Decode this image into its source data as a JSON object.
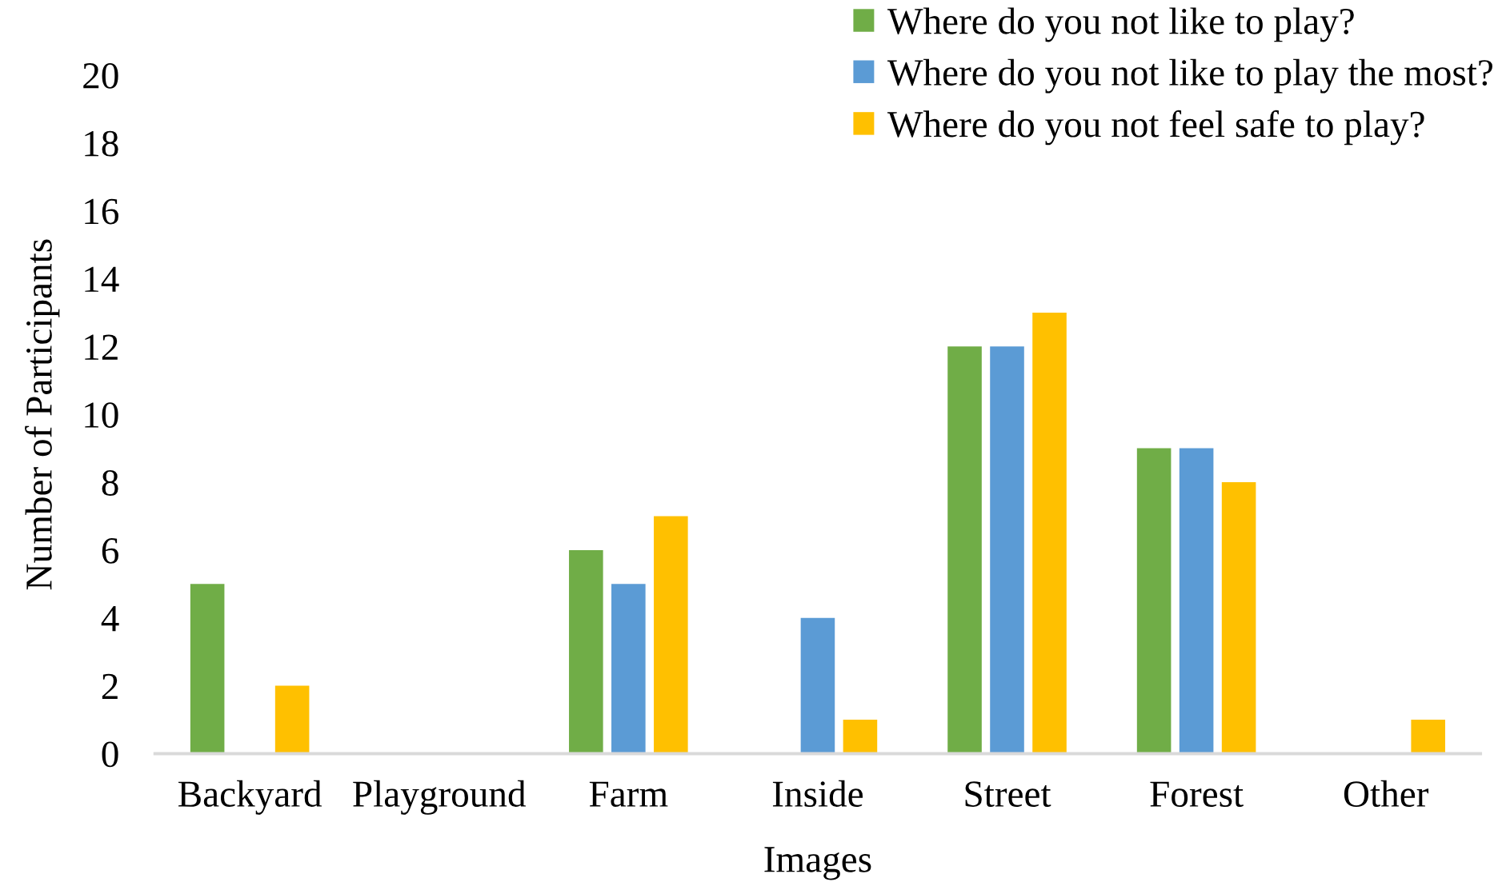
{
  "chart_data": {
    "type": "bar",
    "xlabel": "Images",
    "ylabel": "Number of Participants",
    "categories": [
      "Backyard",
      "Playground",
      "Farm",
      "Inside",
      "Street",
      "Forest",
      "Other"
    ],
    "series": [
      {
        "name": "Where do you not like to play?",
        "color": "#70ad47",
        "values": [
          5,
          0,
          6,
          0,
          12,
          9,
          0
        ]
      },
      {
        "name": "Where do you not like to play the most?",
        "color": "#5b9bd5",
        "values": [
          0,
          0,
          5,
          4,
          12,
          9,
          0
        ]
      },
      {
        "name": "Where do you not feel safe to play?",
        "color": "#ffc000",
        "values": [
          2,
          0,
          7,
          1,
          13,
          8,
          1
        ]
      }
    ],
    "ylim": [
      0,
      20
    ],
    "yticks": [
      0,
      2,
      4,
      6,
      8,
      10,
      12,
      14,
      16,
      18,
      20
    ],
    "grid": false,
    "legend": "top right"
  }
}
